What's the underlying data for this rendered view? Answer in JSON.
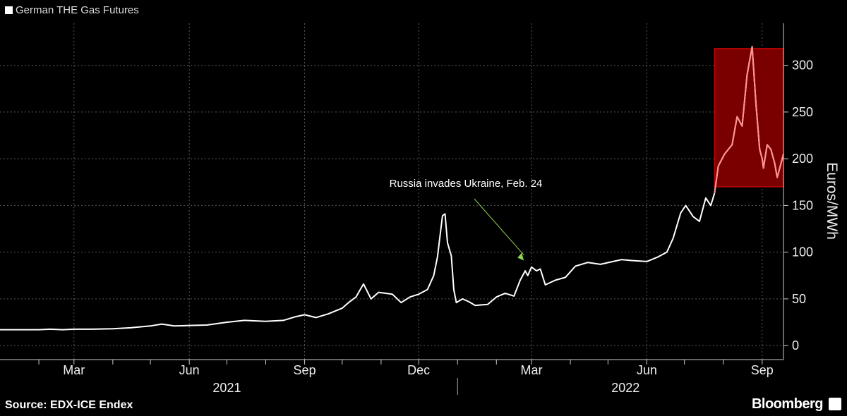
{
  "chart_data": {
    "type": "line",
    "legend": "German THE Gas Futures",
    "ylabel": "Euros/MWh",
    "ylim": [
      -15,
      345
    ],
    "yticks": [
      0,
      50,
      100,
      150,
      200,
      250,
      300
    ],
    "x_start": "2021-01-01",
    "x_end": "2022-09-18",
    "x_month_ticks": [
      {
        "date": "2021-02-01"
      },
      {
        "date": "2021-03-01",
        "label": "Mar"
      },
      {
        "date": "2021-04-01"
      },
      {
        "date": "2021-05-01"
      },
      {
        "date": "2021-06-01",
        "label": "Jun"
      },
      {
        "date": "2021-07-01"
      },
      {
        "date": "2021-08-01"
      },
      {
        "date": "2021-09-01",
        "label": "Sep"
      },
      {
        "date": "2021-10-01"
      },
      {
        "date": "2021-11-01"
      },
      {
        "date": "2021-12-01",
        "label": "Dec"
      },
      {
        "date": "2022-01-01"
      },
      {
        "date": "2022-02-01"
      },
      {
        "date": "2022-03-01",
        "label": "Mar"
      },
      {
        "date": "2022-04-01"
      },
      {
        "date": "2022-05-01"
      },
      {
        "date": "2022-06-01",
        "label": "Jun"
      },
      {
        "date": "2022-07-01"
      },
      {
        "date": "2022-08-01"
      },
      {
        "date": "2022-09-01",
        "label": "Sep"
      }
    ],
    "years": [
      {
        "label": "2021",
        "center": "2021-07-01"
      },
      {
        "label": "2022",
        "center": "2022-05-15"
      }
    ],
    "year_divider": "2022-01-01",
    "highlight": {
      "x_start": "2022-07-25",
      "x_end": "2022-09-18",
      "y_start": 170,
      "y_end": 318,
      "color": "#7a0000",
      "line_color": "#ff9090"
    },
    "annotation": {
      "text": "Russia invades Ukraine, Feb. 24",
      "date": "2022-02-24",
      "value": 88,
      "color": "#8fd14f"
    },
    "series": [
      {
        "values": [
          [
            "2021-01-01",
            17
          ],
          [
            "2021-01-15",
            17
          ],
          [
            "2021-02-01",
            17
          ],
          [
            "2021-02-10",
            17.5
          ],
          [
            "2021-02-20",
            17
          ],
          [
            "2021-03-01",
            17.5
          ],
          [
            "2021-03-15",
            17.5
          ],
          [
            "2021-04-01",
            18
          ],
          [
            "2021-04-15",
            19
          ],
          [
            "2021-05-01",
            21
          ],
          [
            "2021-05-10",
            23
          ],
          [
            "2021-05-20",
            21
          ],
          [
            "2021-06-01",
            21.5
          ],
          [
            "2021-06-15",
            22
          ],
          [
            "2021-07-01",
            25
          ],
          [
            "2021-07-15",
            27
          ],
          [
            "2021-08-01",
            26
          ],
          [
            "2021-08-15",
            27
          ],
          [
            "2021-08-25",
            31
          ],
          [
            "2021-09-01",
            33
          ],
          [
            "2021-09-10",
            30
          ],
          [
            "2021-09-20",
            34
          ],
          [
            "2021-10-01",
            40
          ],
          [
            "2021-10-06",
            46
          ],
          [
            "2021-10-12",
            52
          ],
          [
            "2021-10-18",
            66
          ],
          [
            "2021-10-24",
            50
          ],
          [
            "2021-10-30",
            57
          ],
          [
            "2021-11-10",
            55
          ],
          [
            "2021-11-17",
            46
          ],
          [
            "2021-11-24",
            52
          ],
          [
            "2021-12-01",
            55
          ],
          [
            "2021-12-08",
            60
          ],
          [
            "2021-12-13",
            75
          ],
          [
            "2021-12-16",
            95
          ],
          [
            "2021-12-20",
            139
          ],
          [
            "2021-12-22",
            141
          ],
          [
            "2021-12-24",
            110
          ],
          [
            "2021-12-27",
            96
          ],
          [
            "2021-12-29",
            60
          ],
          [
            "2021-12-31",
            46
          ],
          [
            "2022-01-05",
            50
          ],
          [
            "2022-01-10",
            47
          ],
          [
            "2022-01-15",
            43
          ],
          [
            "2022-01-25",
            44
          ],
          [
            "2022-02-01",
            52
          ],
          [
            "2022-02-08",
            56
          ],
          [
            "2022-02-15",
            53
          ],
          [
            "2022-02-20",
            70
          ],
          [
            "2022-02-24",
            80
          ],
          [
            "2022-02-26",
            75
          ],
          [
            "2022-03-01",
            84
          ],
          [
            "2022-03-05",
            80
          ],
          [
            "2022-03-08",
            82
          ],
          [
            "2022-03-12",
            65
          ],
          [
            "2022-03-20",
            70
          ],
          [
            "2022-03-28",
            73
          ],
          [
            "2022-04-05",
            85
          ],
          [
            "2022-04-15",
            89
          ],
          [
            "2022-04-25",
            87
          ],
          [
            "2022-05-05",
            90
          ],
          [
            "2022-05-12",
            92
          ],
          [
            "2022-05-20",
            91
          ],
          [
            "2022-06-01",
            90
          ],
          [
            "2022-06-10",
            95
          ],
          [
            "2022-06-17",
            100
          ],
          [
            "2022-06-22",
            115
          ],
          [
            "2022-06-28",
            142
          ],
          [
            "2022-07-02",
            150
          ],
          [
            "2022-07-08",
            138
          ],
          [
            "2022-07-13",
            133
          ],
          [
            "2022-07-18",
            158
          ],
          [
            "2022-07-22",
            150
          ],
          [
            "2022-07-25",
            163
          ],
          [
            "2022-07-28",
            192
          ],
          [
            "2022-08-02",
            205
          ],
          [
            "2022-08-08",
            215
          ],
          [
            "2022-08-12",
            245
          ],
          [
            "2022-08-16",
            235
          ],
          [
            "2022-08-20",
            290
          ],
          [
            "2022-08-24",
            320
          ],
          [
            "2022-08-27",
            260
          ],
          [
            "2022-08-30",
            210
          ],
          [
            "2022-09-01",
            200
          ],
          [
            "2022-09-02",
            190
          ],
          [
            "2022-09-05",
            215
          ],
          [
            "2022-09-08",
            210
          ],
          [
            "2022-09-11",
            195
          ],
          [
            "2022-09-13",
            180
          ],
          [
            "2022-09-15",
            190
          ],
          [
            "2022-09-18",
            205
          ]
        ]
      }
    ]
  },
  "footer": {
    "source": "Source: EDX-ICE Endex",
    "brand": "Bloomberg"
  }
}
